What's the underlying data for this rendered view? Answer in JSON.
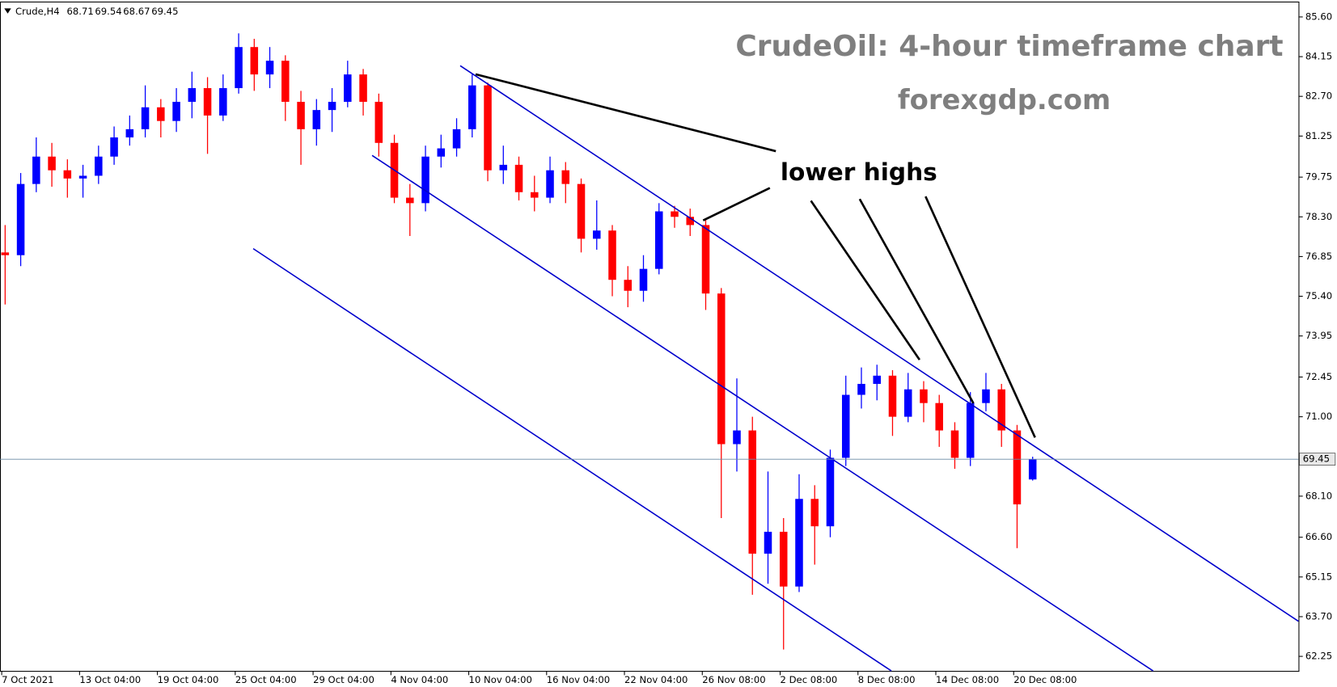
{
  "chart_data": {
    "type": "candlestick",
    "symbol": "Crude,H4",
    "title": "CrudeOil: 4-hour timeframe chart",
    "subtitle": "forexgdp.com",
    "annotation": "lower highs",
    "up_color": "#0000ff",
    "down_color": "#ff0000",
    "categories": [
      "7 Oct 2021",
      null,
      null,
      null,
      null,
      "13 Oct 04:00",
      null,
      null,
      null,
      null,
      "19 Oct 04:00",
      null,
      null,
      null,
      null,
      "25 Oct 04:00",
      null,
      null,
      null,
      null,
      "29 Oct 04:00",
      null,
      null,
      null,
      null,
      "4 Nov 04:00",
      null,
      null,
      null,
      null,
      "10 Nov 04:00",
      null,
      null,
      null,
      null,
      "16 Nov 04:00",
      null,
      null,
      null,
      null,
      "22 Nov 04:00",
      null,
      null,
      null,
      null,
      "26 Nov 08:00",
      null,
      null,
      null,
      null,
      "2 Dec 08:00",
      null,
      null,
      null,
      null,
      "8 Dec 08:00",
      null,
      null,
      null,
      null,
      "14 Dec 08:00",
      null,
      null,
      null,
      null,
      "20 Dec 08:00",
      null
    ],
    "open": [
      77.0,
      76.9,
      79.5,
      80.5,
      80.0,
      79.7,
      79.8,
      80.5,
      81.2,
      81.5,
      82.3,
      81.8,
      82.5,
      83.0,
      82.0,
      83.0,
      84.5,
      83.5,
      84.0,
      82.5,
      81.5,
      82.2,
      82.5,
      83.5,
      82.5,
      81.0,
      79.0,
      78.8,
      80.5,
      80.8,
      81.5,
      83.1,
      80.0,
      80.2,
      79.2,
      79.0,
      80.0,
      79.5,
      77.5,
      77.8,
      76.0,
      75.6,
      76.4,
      78.5,
      78.3,
      78.0,
      75.5,
      70.0,
      70.5,
      66.0,
      66.8,
      64.8,
      68.0,
      67.0,
      69.5,
      71.8,
      72.2,
      72.5,
      71.0,
      72.0,
      71.5,
      70.5,
      69.5,
      71.5,
      72.0,
      70.5,
      68.71
    ],
    "high": [
      78.0,
      79.9,
      81.2,
      81.0,
      80.4,
      80.2,
      80.9,
      81.6,
      82.0,
      83.1,
      82.6,
      83.0,
      83.6,
      83.4,
      83.5,
      85.0,
      84.8,
      84.5,
      84.2,
      82.9,
      82.6,
      83.0,
      84.0,
      83.7,
      82.8,
      81.3,
      79.5,
      80.9,
      81.3,
      81.9,
      83.5,
      83.2,
      80.9,
      80.5,
      79.8,
      80.5,
      80.3,
      79.7,
      78.9,
      78.0,
      76.5,
      76.9,
      78.8,
      78.7,
      78.6,
      78.2,
      75.7,
      72.4,
      71.0,
      69.0,
      67.3,
      68.9,
      68.5,
      69.8,
      72.5,
      72.8,
      72.9,
      72.7,
      72.6,
      72.3,
      71.8,
      70.8,
      71.9,
      72.6,
      72.2,
      70.7,
      69.54
    ],
    "low": [
      75.1,
      76.5,
      79.2,
      79.4,
      79.0,
      79.0,
      79.5,
      80.2,
      80.9,
      81.2,
      81.2,
      81.4,
      81.9,
      80.6,
      81.8,
      82.8,
      82.9,
      83.0,
      81.8,
      80.2,
      80.9,
      81.4,
      82.3,
      82.0,
      80.5,
      78.8,
      77.6,
      78.5,
      80.1,
      80.5,
      81.2,
      79.6,
      79.5,
      78.9,
      78.5,
      78.8,
      78.8,
      77.0,
      77.1,
      75.4,
      75.0,
      75.2,
      76.2,
      77.9,
      77.6,
      74.9,
      67.3,
      69.0,
      64.5,
      64.9,
      62.5,
      64.6,
      65.6,
      66.6,
      69.2,
      71.3,
      71.6,
      70.3,
      70.8,
      70.8,
      69.9,
      69.1,
      69.2,
      71.2,
      69.9,
      66.2,
      68.67
    ],
    "close": [
      76.9,
      79.5,
      80.5,
      80.0,
      79.7,
      79.8,
      80.5,
      81.2,
      81.5,
      82.3,
      81.8,
      82.5,
      83.0,
      82.0,
      83.0,
      84.5,
      83.5,
      84.0,
      82.5,
      81.5,
      82.2,
      82.5,
      83.5,
      82.5,
      81.0,
      79.0,
      78.8,
      80.5,
      80.8,
      81.5,
      83.1,
      80.0,
      80.2,
      79.2,
      79.0,
      80.0,
      79.5,
      77.5,
      77.8,
      76.0,
      75.6,
      76.4,
      78.5,
      78.3,
      78.0,
      75.5,
      70.0,
      70.5,
      66.0,
      66.8,
      64.8,
      68.0,
      67.0,
      69.5,
      71.8,
      72.2,
      72.5,
      71.0,
      72.0,
      71.5,
      70.5,
      69.5,
      71.5,
      72.0,
      70.5,
      67.8,
      69.45
    ],
    "ylim": [
      61.72,
      86.16
    ],
    "yticks": [
      {
        "value": 85.6,
        "label": "85.60"
      },
      84.15,
      {
        "value": 82.7,
        "label": "82.70"
      },
      81.25,
      79.75,
      {
        "value": 78.3,
        "label": "78.30"
      },
      76.85,
      {
        "value": 75.4,
        "label": "75.40"
      },
      73.95,
      72.45,
      {
        "value": 71,
        "label": "71.00"
      },
      {
        "value": 68.1,
        "label": "68.10"
      },
      {
        "value": 66.6,
        "label": "66.60"
      },
      65.15,
      {
        "value": 63.7,
        "label": "63.70"
      },
      62.25
    ]
  }
}
